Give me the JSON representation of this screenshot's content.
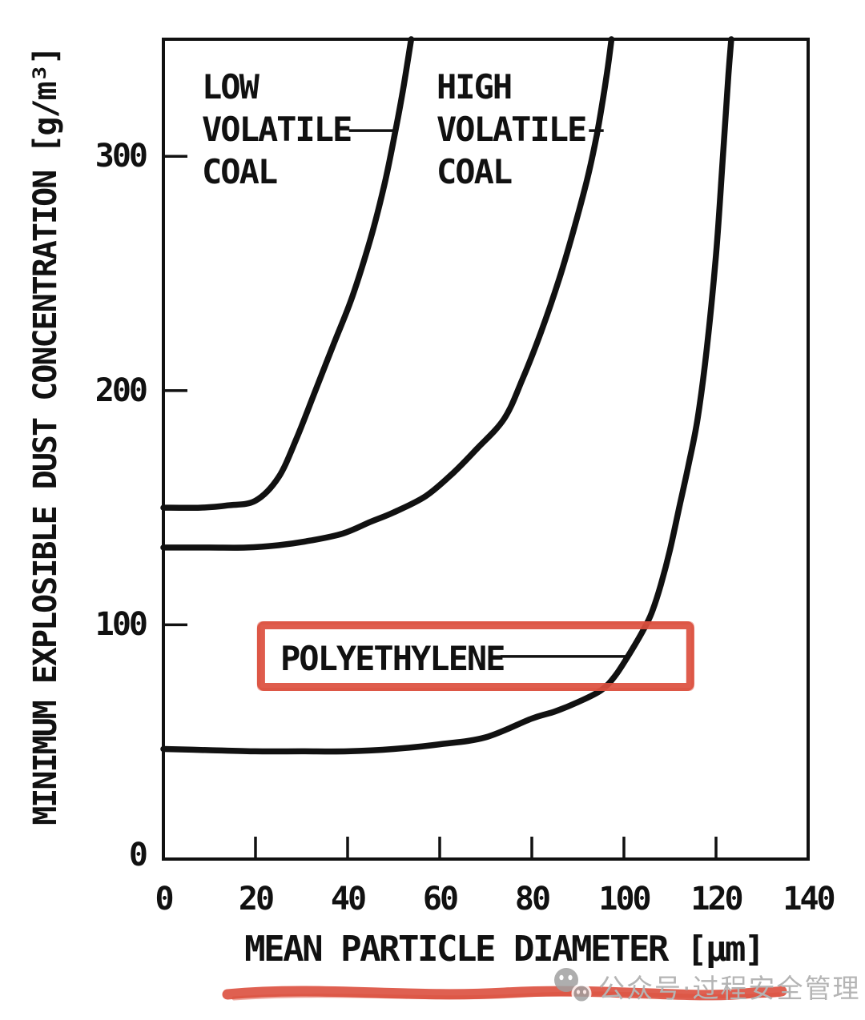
{
  "figure": {
    "background_color": "#ffffff",
    "ink_color": "#111111",
    "highlight_color": "#dc4f3e",
    "watermark": {
      "logo": "wechat-chat-bubbles-icon",
      "text": "公众号·过程安全管理",
      "color": "#b4b4b4"
    }
  },
  "chart_data": {
    "type": "line",
    "title": "",
    "xlabel": "MEAN PARTICLE DIAMETER [μm]",
    "ylabel": "MINIMUM EXPLOSIBLE DUST CONCENTRATION [g/m³]",
    "xlim": [
      0,
      140
    ],
    "ylim": [
      0,
      350
    ],
    "x_ticks": [
      0,
      20,
      40,
      60,
      80,
      100,
      120,
      140
    ],
    "y_ticks": [
      0,
      100,
      200,
      300
    ],
    "grid": false,
    "legend_position": "inline-labels-with-leader-lines",
    "series": [
      {
        "name": "LOW VOLATILE COAL",
        "points": [
          [
            0,
            150
          ],
          [
            8,
            150
          ],
          [
            14,
            151
          ],
          [
            20,
            153
          ],
          [
            25,
            163
          ],
          [
            29,
            180
          ],
          [
            33,
            200
          ],
          [
            37,
            220
          ],
          [
            41,
            240
          ],
          [
            45,
            265
          ],
          [
            48,
            288
          ],
          [
            50.3,
            310
          ],
          [
            52,
            328
          ],
          [
            53.8,
            350
          ]
        ]
      },
      {
        "name": "HIGH VOLATILE COAL",
        "points": [
          [
            0,
            133
          ],
          [
            10,
            133
          ],
          [
            18,
            133
          ],
          [
            25,
            134
          ],
          [
            32,
            136
          ],
          [
            39,
            139
          ],
          [
            45,
            144
          ],
          [
            50,
            148
          ],
          [
            57,
            155
          ],
          [
            63,
            165
          ],
          [
            68,
            175
          ],
          [
            74,
            188
          ],
          [
            78,
            205
          ],
          [
            82,
            225
          ],
          [
            86,
            248
          ],
          [
            89,
            268
          ],
          [
            92,
            290
          ],
          [
            94,
            308
          ],
          [
            95.5,
            325
          ],
          [
            96.5,
            338
          ],
          [
            97.3,
            350
          ]
        ]
      },
      {
        "name": "POLYETHYLENE",
        "points": [
          [
            0,
            47
          ],
          [
            10,
            46.5
          ],
          [
            20,
            46
          ],
          [
            30,
            46
          ],
          [
            40,
            46
          ],
          [
            50,
            47
          ],
          [
            60,
            49
          ],
          [
            70,
            52
          ],
          [
            80,
            60
          ],
          [
            85,
            63
          ],
          [
            90,
            67
          ],
          [
            95,
            72
          ],
          [
            98,
            78
          ],
          [
            101,
            87
          ],
          [
            104,
            97
          ],
          [
            106,
            105
          ],
          [
            108,
            117
          ],
          [
            110,
            132
          ],
          [
            112,
            150
          ],
          [
            114,
            168
          ],
          [
            116,
            188
          ],
          [
            118,
            218
          ],
          [
            120,
            258
          ],
          [
            121.5,
            300
          ],
          [
            122.7,
            335
          ],
          [
            123.3,
            350
          ]
        ]
      }
    ],
    "annotations": [
      {
        "lines": [
          "LOW",
          "VOLATILE",
          "COAL"
        ],
        "leader": {
          "y": 311,
          "x_from": 40.3,
          "x_to": 50.0
        }
      },
      {
        "lines": [
          "HIGH",
          "VOLATILE",
          "COAL"
        ],
        "leader": {
          "y": 311,
          "x_from": 92.4,
          "x_to": 95.6
        }
      },
      {
        "lines": [
          "POLYETHYLENE"
        ],
        "leader": {
          "y": 86.5,
          "x_from": 73.2,
          "x_to": 101.2
        }
      }
    ],
    "highlight_box": {
      "label": "POLYETHYLENE",
      "x_range": [
        21.2,
        114.4
      ],
      "y_range": [
        73.5,
        99.8
      ]
    }
  }
}
